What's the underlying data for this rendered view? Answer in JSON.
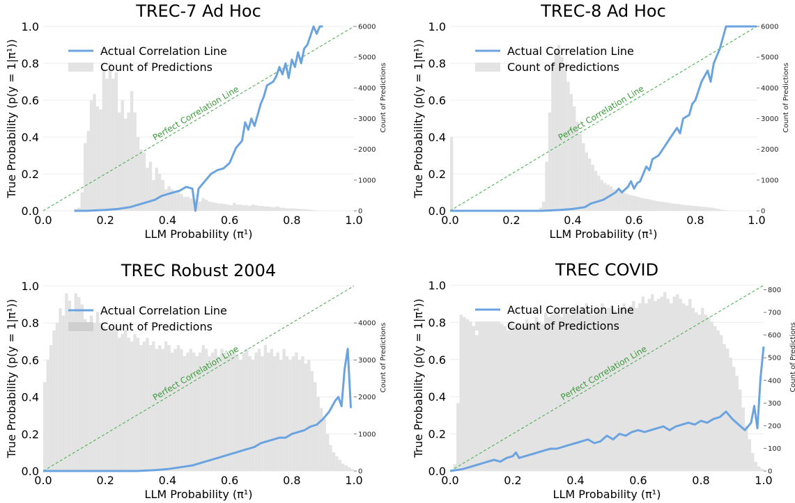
{
  "figure": {
    "legend_actual": "Actual Correlation Line",
    "legend_count": "Count of Predictions",
    "perfect_label": "Perfect Correlation Line",
    "colors": {
      "actual": "#6aa3e0",
      "hist": "#e3e3e3",
      "perfect": "#4caf50",
      "grid": "#ececec"
    }
  },
  "chart_data": [
    {
      "type": "line+histogram",
      "title": "TREC-7 Ad Hoc",
      "xlabel": "LLM Probability (π¹)",
      "ylabel": "True Probability (p(y = 1|π¹))",
      "y2label": "Count of Predictions",
      "xlim": [
        0,
        1
      ],
      "ylim": [
        0,
        1
      ],
      "y2lim": [
        0,
        6000
      ],
      "x_ticks": [
        "0.0",
        "0.2",
        "0.4",
        "0.6",
        "0.8",
        "1.0"
      ],
      "y_ticks": [
        "0.0",
        "0.2",
        "0.4",
        "0.6",
        "0.8",
        "1.0"
      ],
      "y2_ticks": [
        0,
        1000,
        2000,
        3000,
        4000,
        5000,
        6000
      ],
      "legend": "top-left",
      "grid": "horizontal",
      "perfect_line": [
        [
          0,
          0
        ],
        [
          1,
          1
        ]
      ],
      "actual_line": {
        "x": [
          0.1,
          0.14,
          0.2,
          0.24,
          0.28,
          0.3,
          0.32,
          0.34,
          0.36,
          0.38,
          0.4,
          0.42,
          0.44,
          0.46,
          0.48,
          0.49,
          0.5,
          0.52,
          0.54,
          0.56,
          0.58,
          0.6,
          0.62,
          0.64,
          0.65,
          0.66,
          0.67,
          0.68,
          0.7,
          0.71,
          0.72,
          0.74,
          0.75,
          0.76,
          0.77,
          0.78,
          0.79,
          0.8,
          0.81,
          0.82,
          0.83,
          0.84,
          0.85,
          0.86,
          0.87,
          0.88,
          0.89,
          0.9
        ],
        "y": [
          0.0,
          0.0,
          0.005,
          0.01,
          0.02,
          0.03,
          0.04,
          0.05,
          0.06,
          0.08,
          0.09,
          0.1,
          0.11,
          0.13,
          0.12,
          0.0,
          0.12,
          0.16,
          0.2,
          0.22,
          0.23,
          0.26,
          0.34,
          0.38,
          0.48,
          0.44,
          0.5,
          0.46,
          0.58,
          0.62,
          0.68,
          0.7,
          0.73,
          0.78,
          0.74,
          0.8,
          0.72,
          0.82,
          0.78,
          0.86,
          0.8,
          0.88,
          0.9,
          0.95,
          1.0,
          0.96,
          1.0,
          1.0
        ]
      },
      "histogram": {
        "bin_width": 0.01,
        "start": 0.1,
        "counts": [
          60,
          100,
          600,
          2200,
          2600,
          3600,
          3800,
          3400,
          3300,
          4600,
          4300,
          4800,
          4300,
          4500,
          3200,
          3600,
          3000,
          3200,
          3900,
          3200,
          2400,
          2000,
          1900,
          1400,
          1600,
          1000,
          1400,
          1200,
          1000,
          700,
          800,
          700,
          600,
          650,
          550,
          450,
          450,
          400,
          380,
          350,
          300,
          420,
          360,
          300,
          280,
          260,
          240,
          240,
          220,
          200,
          180,
          260,
          200,
          200,
          180,
          180,
          160,
          200,
          180,
          160,
          160,
          140,
          140,
          120,
          120,
          140,
          100,
          100,
          80,
          80,
          80,
          70,
          60,
          60,
          50,
          40,
          30,
          20,
          10,
          5
        ]
      }
    },
    {
      "type": "line+histogram",
      "title": "TREC-8 Ad Hoc",
      "xlabel": "LLM Probability (π¹)",
      "ylabel": "True Probability (p(y = 1|π¹))",
      "y2label": "Count of Predictions",
      "xlim": [
        0,
        1
      ],
      "ylim": [
        0,
        1
      ],
      "y2lim": [
        0,
        6000
      ],
      "x_ticks": [
        "0.0",
        "0.2",
        "0.4",
        "0.6",
        "0.8",
        "1.0"
      ],
      "y_ticks": [
        "0.0",
        "0.2",
        "0.4",
        "0.6",
        "0.8",
        "1.0"
      ],
      "y2_ticks": [
        0,
        1000,
        2000,
        3000,
        4000,
        5000,
        6000
      ],
      "legend": "top-left",
      "grid": "horizontal",
      "perfect_line": [
        [
          0,
          0
        ],
        [
          1,
          1
        ]
      ],
      "actual_line": {
        "x": [
          0.0,
          0.3,
          0.36,
          0.4,
          0.44,
          0.46,
          0.48,
          0.5,
          0.52,
          0.54,
          0.55,
          0.56,
          0.58,
          0.59,
          0.6,
          0.61,
          0.62,
          0.64,
          0.65,
          0.66,
          0.68,
          0.7,
          0.72,
          0.74,
          0.75,
          0.76,
          0.78,
          0.79,
          0.8,
          0.82,
          0.84,
          0.85,
          0.86,
          0.88,
          0.9,
          0.92,
          1.0
        ],
        "y": [
          0.0,
          0.0,
          0.005,
          0.01,
          0.02,
          0.04,
          0.05,
          0.06,
          0.08,
          0.1,
          0.12,
          0.1,
          0.13,
          0.16,
          0.12,
          0.15,
          0.16,
          0.24,
          0.22,
          0.28,
          0.3,
          0.35,
          0.4,
          0.45,
          0.42,
          0.5,
          0.52,
          0.58,
          0.6,
          0.7,
          0.76,
          0.7,
          0.8,
          0.88,
          1.0,
          1.0,
          1.0
        ]
      },
      "histogram": {
        "bin_width": 0.01,
        "start": 0.0,
        "counts": [
          2400,
          0,
          0,
          0,
          0,
          0,
          0,
          0,
          0,
          0,
          0,
          0,
          0,
          0,
          0,
          0,
          0,
          0,
          0,
          0,
          0,
          0,
          0,
          0,
          0,
          0,
          0,
          0,
          0,
          100,
          300,
          1600,
          3200,
          4800,
          5200,
          5400,
          5000,
          4600,
          4200,
          3800,
          3400,
          2900,
          2500,
          2200,
          1900,
          1700,
          1500,
          1300,
          1150,
          1000,
          900,
          850,
          800,
          700,
          650,
          620,
          600,
          560,
          520,
          500,
          480,
          450,
          420,
          400,
          380,
          360,
          340,
          320,
          300,
          290,
          270,
          260,
          240,
          230,
          220,
          200,
          190,
          180,
          170,
          160,
          150,
          140,
          130,
          120,
          110,
          100,
          80,
          60,
          40,
          20,
          10,
          0,
          0,
          0,
          0,
          0,
          0,
          0,
          0,
          0
        ]
      }
    },
    {
      "type": "line+histogram",
      "title": "TREC Robust 2004",
      "xlabel": "LLM Probability (π¹)",
      "ylabel": "True Probability (p(y = 1|π¹))",
      "y2label": "Count of Predictions",
      "xlim": [
        0,
        1
      ],
      "ylim": [
        0,
        1
      ],
      "y2lim": [
        0,
        5000
      ],
      "x_ticks": [
        "0.0",
        "0.2",
        "0.4",
        "0.6",
        "0.8",
        "1.0"
      ],
      "y_ticks": [
        "0.0",
        "0.2",
        "0.4",
        "0.6",
        "0.8",
        "1.0"
      ],
      "y2_ticks": [
        0,
        1000,
        2000,
        3000,
        4000
      ],
      "legend": "top-left",
      "grid": "horizontal",
      "perfect_line": [
        [
          0,
          0
        ],
        [
          1,
          1
        ]
      ],
      "actual_line": {
        "x": [
          0.0,
          0.3,
          0.36,
          0.4,
          0.44,
          0.48,
          0.52,
          0.56,
          0.6,
          0.62,
          0.64,
          0.66,
          0.68,
          0.7,
          0.72,
          0.74,
          0.76,
          0.78,
          0.8,
          0.82,
          0.84,
          0.86,
          0.88,
          0.9,
          0.92,
          0.94,
          0.95,
          0.96,
          0.97,
          0.98,
          0.99
        ],
        "y": [
          0.0,
          0.0,
          0.005,
          0.01,
          0.02,
          0.03,
          0.05,
          0.07,
          0.09,
          0.1,
          0.11,
          0.12,
          0.13,
          0.15,
          0.16,
          0.17,
          0.18,
          0.18,
          0.2,
          0.21,
          0.22,
          0.24,
          0.25,
          0.28,
          0.32,
          0.38,
          0.4,
          0.35,
          0.55,
          0.66,
          0.34
        ]
      },
      "histogram": {
        "bin_width": 0.01,
        "start": 0.0,
        "counts": [
          2400,
          3000,
          3400,
          3800,
          4000,
          4400,
          4200,
          4800,
          4600,
          4300,
          4800,
          4700,
          4500,
          4100,
          4000,
          4200,
          4000,
          4300,
          4000,
          3900,
          3800,
          3900,
          3800,
          3900,
          3600,
          3700,
          3800,
          3600,
          3500,
          3700,
          3600,
          3400,
          3500,
          3600,
          3400,
          3500,
          3300,
          3400,
          3300,
          3500,
          3400,
          3200,
          3300,
          3400,
          3300,
          3100,
          3200,
          3300,
          3200,
          3100,
          3200,
          3400,
          3300,
          3100,
          3200,
          3300,
          3100,
          3300,
          3200,
          3100,
          3200,
          3300,
          3100,
          3000,
          3200,
          3300,
          3100,
          3000,
          3200,
          3300,
          3100,
          3400,
          3200,
          3300,
          3100,
          3200,
          3000,
          3300,
          3100,
          3000,
          3100,
          3200,
          3000,
          3100,
          2900,
          3000,
          2700,
          2400,
          2000,
          1700,
          1400,
          1000,
          700,
          500,
          400,
          300,
          200,
          150,
          100,
          50
        ]
      }
    },
    {
      "type": "line+histogram",
      "title": "TREC COVID",
      "xlabel": "LLM Probability (π¹)",
      "ylabel": "True Probability (p(y = 1|π¹))",
      "y2label": "Count of Predictions",
      "xlim": [
        0,
        1
      ],
      "ylim": [
        0,
        1
      ],
      "y2lim": [
        0,
        820
      ],
      "x_ticks": [
        "0.0",
        "0.2",
        "0.4",
        "0.6",
        "0.8",
        "1.0"
      ],
      "y_ticks": [
        "0.0",
        "0.2",
        "0.4",
        "0.6",
        "0.8",
        "1.0"
      ],
      "y2_ticks": [
        0,
        100,
        200,
        300,
        400,
        500,
        600,
        700,
        800
      ],
      "legend": "top-left",
      "grid": "horizontal",
      "perfect_line": [
        [
          0,
          0
        ],
        [
          1,
          1
        ]
      ],
      "actual_line": {
        "x": [
          0.0,
          0.04,
          0.08,
          0.1,
          0.12,
          0.14,
          0.16,
          0.18,
          0.2,
          0.21,
          0.22,
          0.24,
          0.26,
          0.28,
          0.3,
          0.32,
          0.34,
          0.36,
          0.38,
          0.4,
          0.42,
          0.44,
          0.46,
          0.48,
          0.5,
          0.52,
          0.54,
          0.56,
          0.58,
          0.6,
          0.62,
          0.64,
          0.66,
          0.68,
          0.7,
          0.72,
          0.74,
          0.76,
          0.78,
          0.8,
          0.82,
          0.84,
          0.86,
          0.88,
          0.9,
          0.92,
          0.94,
          0.96,
          0.97,
          0.98,
          0.99,
          1.0
        ],
        "y": [
          0.0,
          0.01,
          0.03,
          0.04,
          0.05,
          0.06,
          0.05,
          0.07,
          0.08,
          0.1,
          0.07,
          0.08,
          0.09,
          0.1,
          0.11,
          0.12,
          0.12,
          0.13,
          0.14,
          0.15,
          0.16,
          0.17,
          0.15,
          0.16,
          0.19,
          0.17,
          0.2,
          0.19,
          0.21,
          0.22,
          0.21,
          0.22,
          0.23,
          0.24,
          0.22,
          0.24,
          0.25,
          0.26,
          0.25,
          0.27,
          0.26,
          0.28,
          0.29,
          0.32,
          0.28,
          0.25,
          0.22,
          0.26,
          0.35,
          0.23,
          0.5,
          0.67
        ]
      },
      "histogram": {
        "bin_width": 0.01,
        "start": 0.0,
        "counts": [
          0,
          30,
          300,
          690,
          680,
          670,
          660,
          640,
          600,
          650,
          620,
          640,
          650,
          620,
          640,
          630,
          650,
          640,
          620,
          660,
          640,
          650,
          630,
          640,
          670,
          650,
          640,
          680,
          660,
          650,
          700,
          680,
          690,
          710,
          700,
          680,
          720,
          700,
          690,
          710,
          730,
          700,
          720,
          740,
          710,
          690,
          720,
          710,
          740,
          700,
          720,
          730,
          710,
          700,
          720,
          740,
          720,
          730,
          750,
          720,
          740,
          770,
          740,
          760,
          780,
          750,
          760,
          770,
          790,
          760,
          740,
          770,
          780,
          760,
          740,
          730,
          760,
          720,
          700,
          690,
          720,
          690,
          680,
          660,
          640,
          620,
          600,
          560,
          540,
          500,
          460,
          420,
          360,
          280,
          200,
          140,
          80,
          40,
          20,
          10
        ]
      }
    }
  ]
}
